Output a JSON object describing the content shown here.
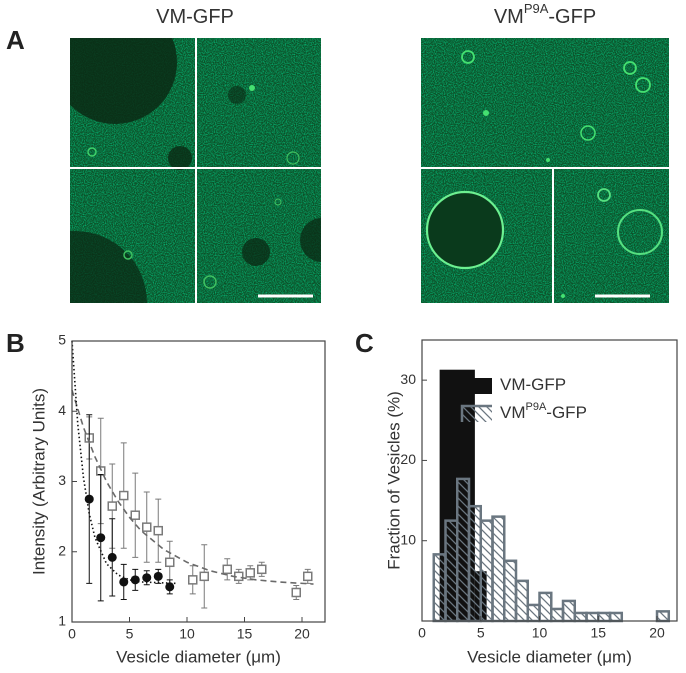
{
  "panel_a": {
    "label": "A",
    "titles": [
      [
        "VM-GFP"
      ],
      [
        "VM",
        "P9A",
        "-GFP"
      ]
    ]
  },
  "chart_data": [
    {
      "type": "scatter",
      "panel_label": "B",
      "x_label": "Vesicle diameter (μm)",
      "y_label": "Intensity (Arbitrary Units)",
      "xlim": [
        0,
        22
      ],
      "ylim": [
        1,
        5
      ],
      "xticks": [
        0,
        5,
        10,
        15,
        20
      ],
      "yticks": [
        1,
        2,
        3,
        4,
        5
      ],
      "series": [
        {
          "color": "#7a7a7a",
          "marker": "square",
          "x": [
            1.5,
            2.5,
            3.5,
            4.5,
            5.5,
            6.5,
            7.5,
            8.5,
            10.5,
            11.5,
            13.5,
            14.5,
            15.5,
            16.5,
            19.5,
            20.5
          ],
          "values": [
            3.62,
            3.15,
            2.65,
            2.8,
            2.52,
            2.35,
            2.3,
            1.85,
            1.6,
            1.65,
            1.75,
            1.65,
            1.7,
            1.75,
            1.42,
            1.65
          ],
          "errors": [
            0.3,
            0.75,
            0.6,
            0.75,
            0.6,
            0.5,
            0.45,
            0.3,
            0.2,
            0.45,
            0.15,
            0.1,
            0.1,
            0.1,
            0.1,
            0.1
          ]
        },
        {
          "color": "#111111",
          "marker": "circle",
          "x": [
            1.5,
            2.5,
            3.5,
            4.5,
            5.5,
            6.5,
            7.5,
            8.5
          ],
          "values": [
            2.75,
            2.2,
            1.92,
            1.57,
            1.6,
            1.63,
            1.65,
            1.5
          ],
          "errors": [
            1.2,
            0.9,
            0.55,
            0.25,
            0.15,
            0.1,
            0.1,
            0.1
          ]
        },
        {
          "color": "#6a6a6a",
          "line_style": "dashed",
          "x": [
            0,
            1,
            2,
            3,
            4,
            5,
            6,
            8,
            10,
            12,
            14,
            16,
            18,
            21
          ],
          "values": [
            4.3,
            3.77,
            3.35,
            3.0,
            2.72,
            2.49,
            2.3,
            2.03,
            1.85,
            1.73,
            1.65,
            1.6,
            1.57,
            1.54
          ]
        },
        {
          "color": "#111111",
          "line_style": "dotted",
          "x": [
            0,
            0.5,
            1,
            1.5,
            2,
            3,
            4,
            5,
            6,
            9
          ],
          "values": [
            5.0,
            3.82,
            3.05,
            2.54,
            2.2,
            1.83,
            1.67,
            1.6,
            1.57,
            1.55
          ]
        }
      ]
    },
    {
      "type": "histogram",
      "panel_label": "C",
      "x_label": "Vesicle diameter (μm)",
      "y_label": "Fraction of Vesicles (%)",
      "xlim": [
        0,
        21.7
      ],
      "ylim": [
        0,
        35
      ],
      "xticks": [
        0,
        5,
        10,
        15,
        20
      ],
      "yticks": [
        10,
        20,
        30
      ],
      "series": [
        {
          "name": [
            "VM-GFP"
          ],
          "color": "#111111",
          "fill": "solid",
          "bins": [
            1.5,
            4.5,
            5.5
          ],
          "values": [
            31.3,
            6.2
          ]
        },
        {
          "name": [
            "VM",
            "P9A",
            "-GFP"
          ],
          "color": "#6a7680",
          "fill": "hatch",
          "bins": [
            1,
            2,
            3,
            4,
            5,
            6,
            7,
            8,
            9,
            10,
            11,
            12,
            13,
            14,
            15,
            16,
            17,
            18,
            19,
            20,
            21
          ],
          "values": [
            8.3,
            12.5,
            17.7,
            14.3,
            12.5,
            13,
            7.5,
            5,
            2,
            3.5,
            1.5,
            2.5,
            1,
            1,
            1,
            1,
            0,
            0,
            0,
            1.2
          ]
        }
      ]
    }
  ]
}
